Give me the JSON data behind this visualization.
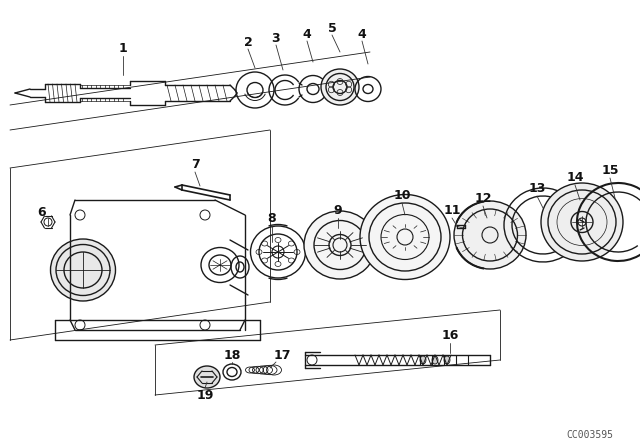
{
  "background_color": "#ffffff",
  "watermark": "CC003595",
  "fig_width": 6.4,
  "fig_height": 4.48,
  "dpi": 100,
  "line_color": "#1a1a1a",
  "label_color": "#111111"
}
